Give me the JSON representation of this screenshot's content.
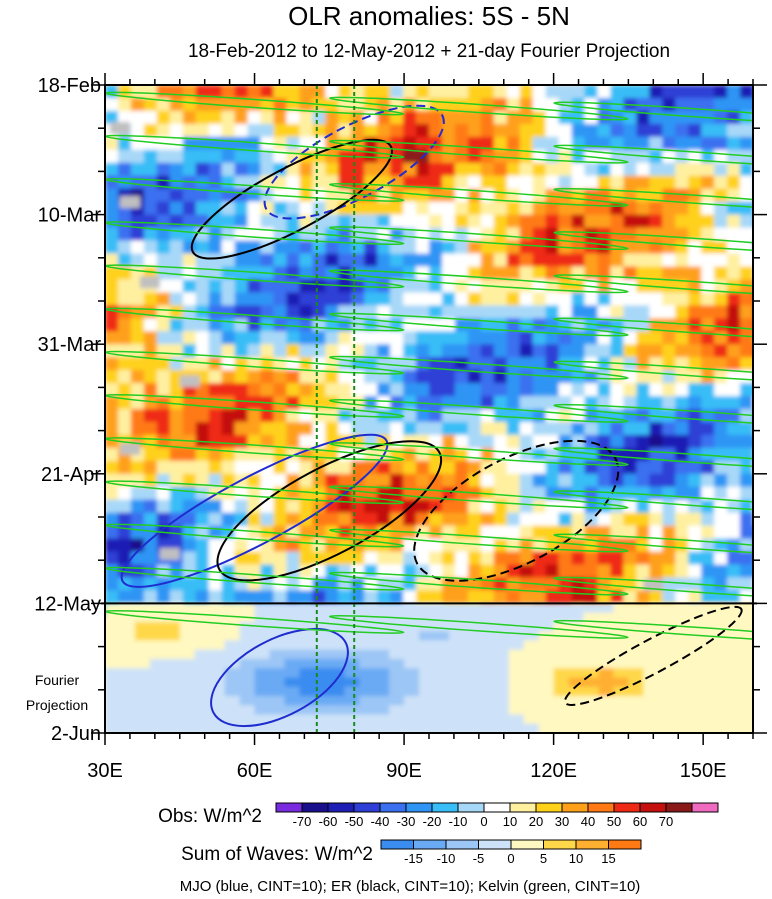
{
  "chart_data": {
    "type": "heatmap",
    "title": "OLR anomalies: 5S - 5N",
    "subtitle": "18-Feb-2012 to 12-May-2012 + 21-day Fourier Projection",
    "x_axis": {
      "range": [
        30,
        160
      ],
      "ticks": [
        {
          "value": 30,
          "label": "30E"
        },
        {
          "value": 60,
          "label": "60E"
        },
        {
          "value": 90,
          "label": "90E"
        },
        {
          "value": 120,
          "label": "120E"
        },
        {
          "value": 150,
          "label": "150E"
        }
      ]
    },
    "y_axis": {
      "range_days": [
        0,
        105
      ],
      "direction": "downward",
      "ticks": [
        {
          "day": 0,
          "label": "18-Feb"
        },
        {
          "day": 21,
          "label": "10-Mar"
        },
        {
          "day": 42,
          "label": "31-Mar"
        },
        {
          "day": 63,
          "label": "21-Apr"
        },
        {
          "day": 84,
          "label": "12-May"
        },
        {
          "day": 105,
          "label": "2-Jun"
        }
      ],
      "projection_label_lines": [
        "Fourier",
        "Projection"
      ]
    },
    "observation_end_day": 84,
    "reference_longitudes": [
      72.5,
      80
    ],
    "obs_colorbar": {
      "label": "Obs: W/m^2",
      "levels": [
        "-70",
        "-60",
        "-50",
        "-40",
        "-30",
        "-20",
        "-10",
        "0",
        "10",
        "20",
        "30",
        "40",
        "50",
        "60",
        "70"
      ],
      "colors": [
        "#7a2be0",
        "#1a0f8c",
        "#1f1fb5",
        "#2d3fd6",
        "#3a6ff0",
        "#2f95f5",
        "#38bdf7",
        "#a8d8f8",
        "#ffffff",
        "#fff0a0",
        "#ffd11a",
        "#ffa01a",
        "#ff7a14",
        "#ef2a14",
        "#c4100e",
        "#8a1a1a",
        "#f06ac0"
      ]
    },
    "waves_colorbar": {
      "label": "Sum of Waves: W/m^2",
      "levels": [
        "-15",
        "-10",
        "-5",
        "0",
        "5",
        "10",
        "15"
      ],
      "colors": [
        "#3a8cf0",
        "#6aaaf4",
        "#9cc6f6",
        "#cde2f8",
        "#fff8c0",
        "#ffd84a",
        "#ffb030",
        "#ff7a14"
      ]
    },
    "overlays": "MJO (blue, CINT=10); ER (black, CINT=10); Kelvin (green, CINT=10)",
    "wave_contours": [
      {
        "wave": "MJO",
        "color": "#1f2ccf",
        "sign": "+",
        "lon": [
          30,
          90
        ],
        "day": [
          62,
          76
        ]
      },
      {
        "wave": "MJO",
        "color": "#1f2ccf",
        "sign": "-",
        "lon": [
          60,
          100
        ],
        "day": [
          5,
          20
        ]
      },
      {
        "wave": "MJO",
        "color": "#1f2ccf",
        "sign": "+",
        "lon": [
          50,
          80
        ],
        "day": [
          88,
          104
        ]
      },
      {
        "wave": "ER",
        "color": "#000000",
        "sign": "+",
        "lon": [
          45,
          90
        ],
        "day": [
          12,
          25
        ]
      },
      {
        "wave": "ER",
        "color": "#000000",
        "sign": "+",
        "lon": [
          50,
          100
        ],
        "day": [
          60,
          78
        ]
      },
      {
        "wave": "ER",
        "color": "#000000",
        "sign": "-",
        "lon": [
          90,
          135
        ],
        "day": [
          58,
          80
        ]
      },
      {
        "wave": "ER",
        "color": "#000000",
        "sign": "-",
        "lon": [
          120,
          160
        ],
        "day": [
          89,
          96
        ]
      },
      {
        "wave": "Kelvin",
        "color": "#22cc22",
        "sign": "+",
        "lon": [
          30,
          160
        ],
        "day": [
          0,
          88
        ]
      }
    ]
  }
}
